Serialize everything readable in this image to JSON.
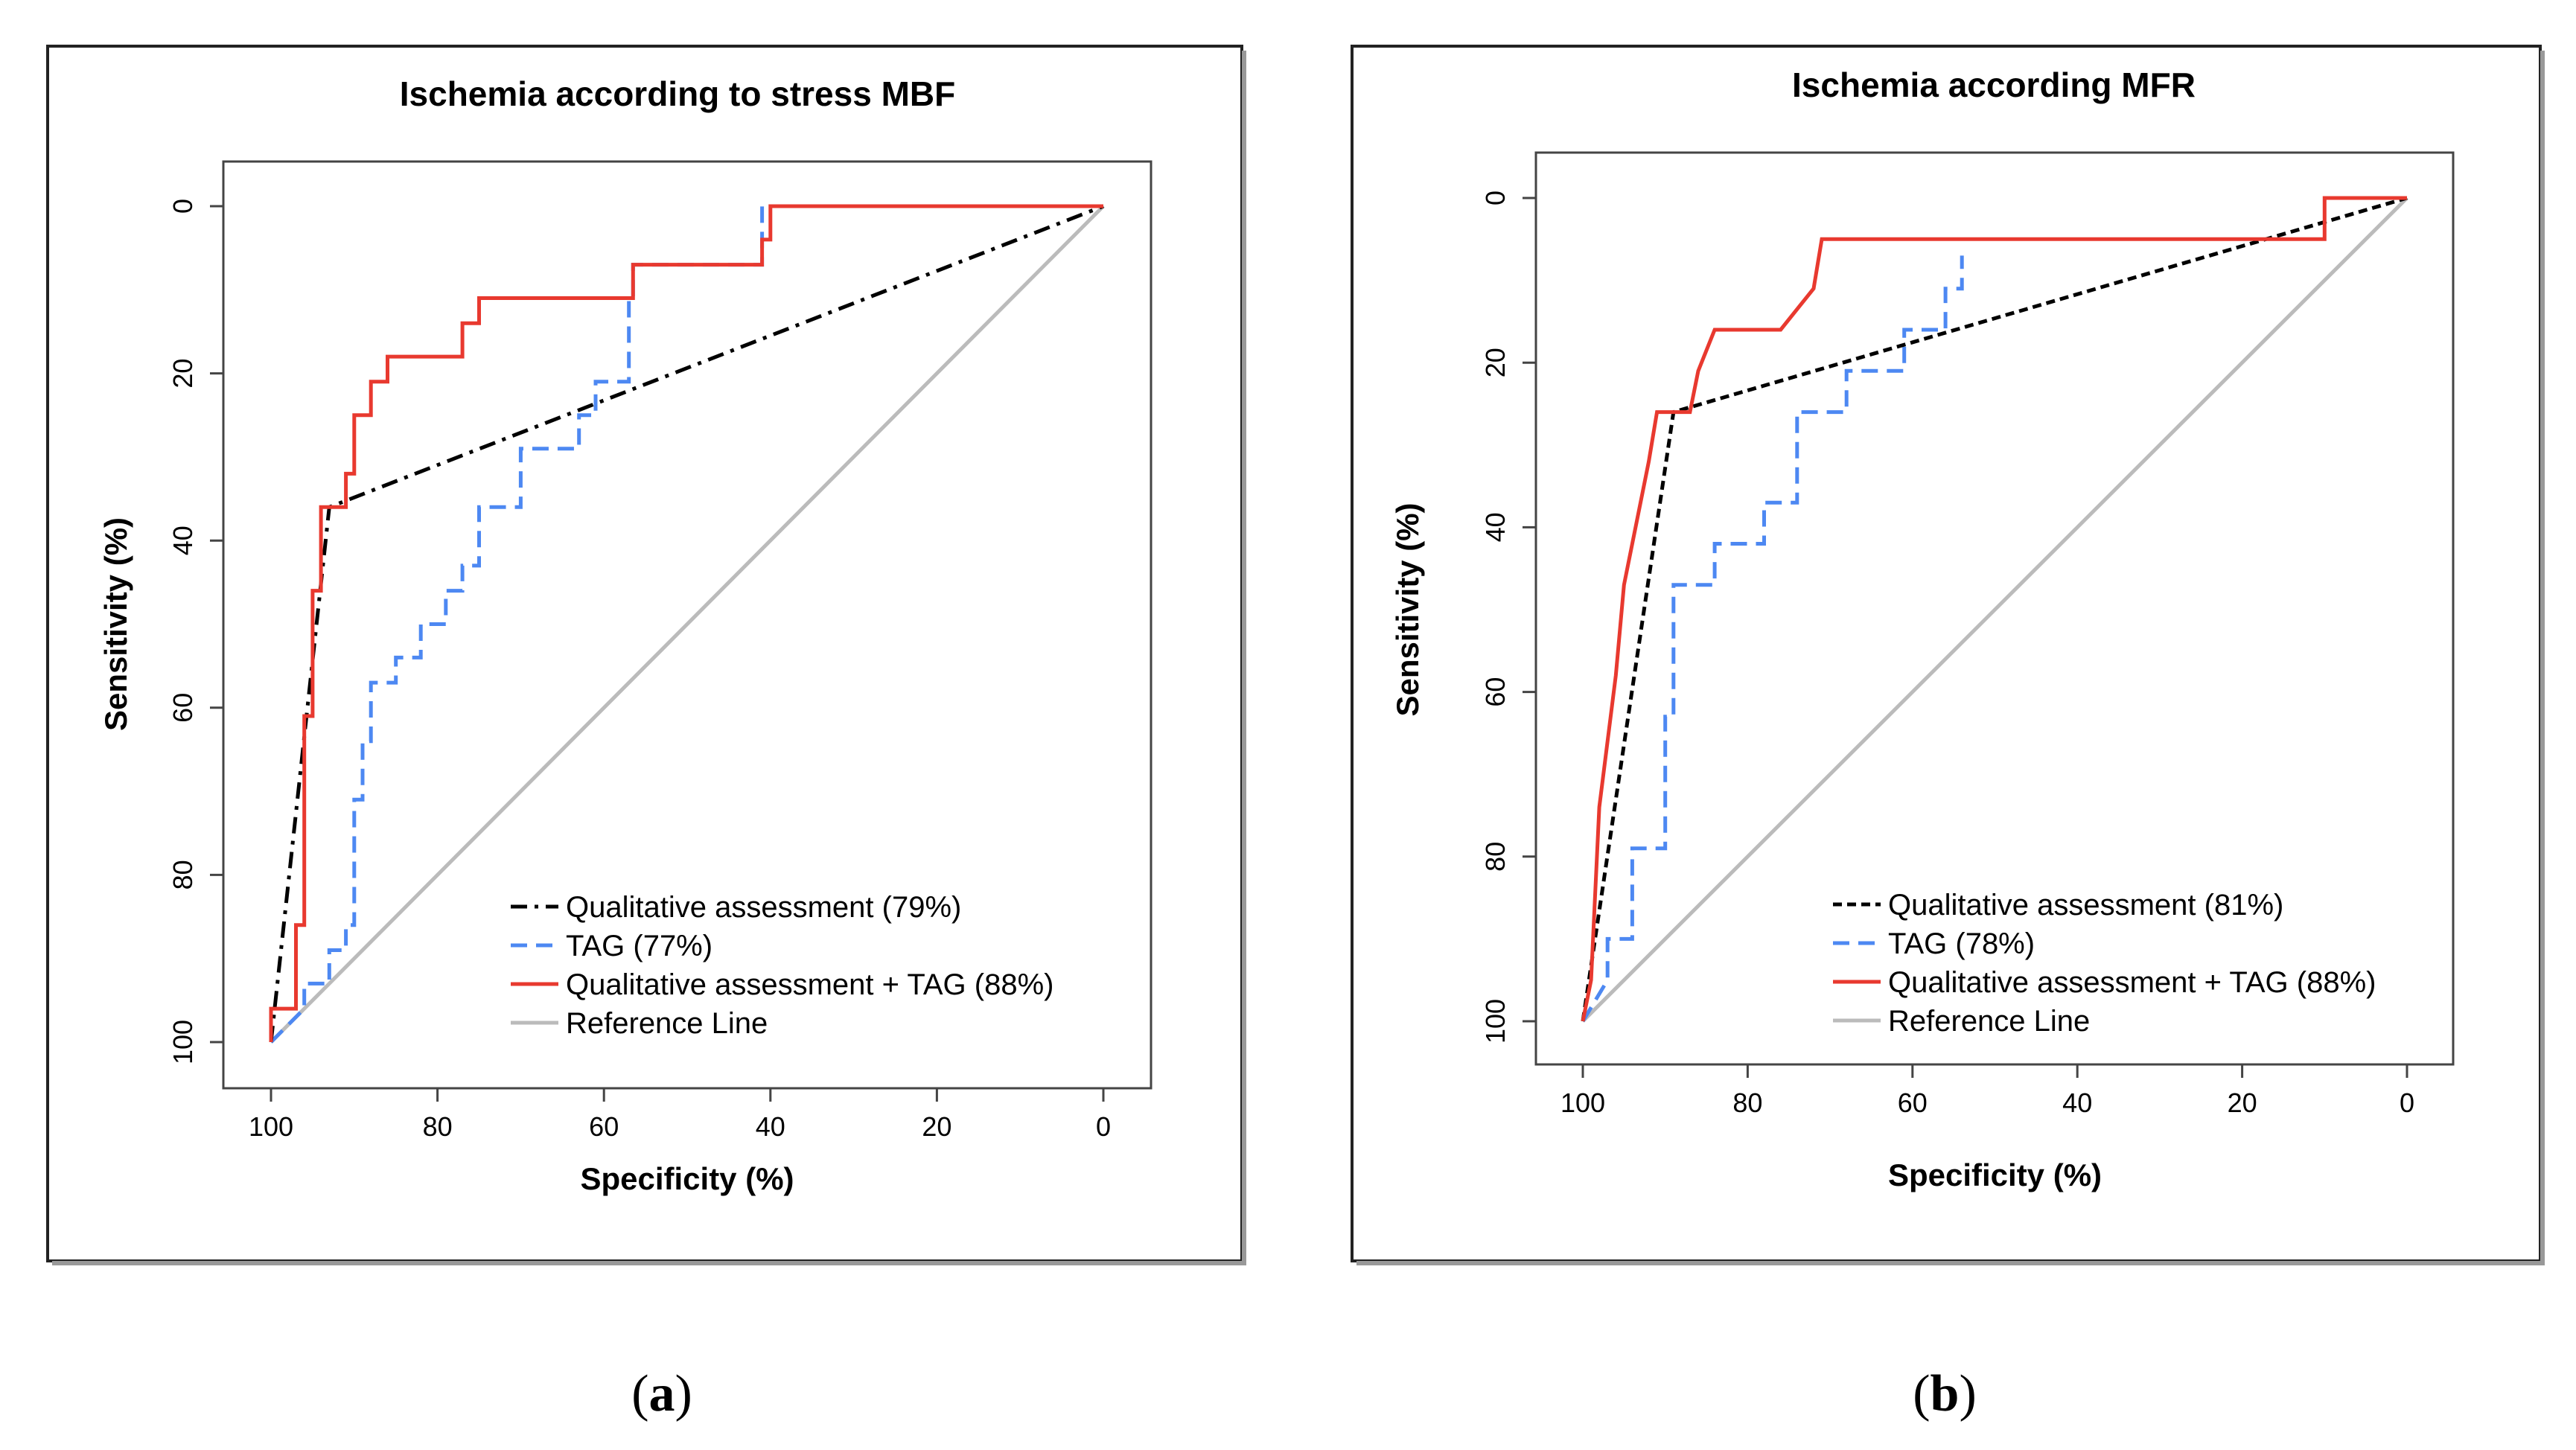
{
  "captions": {
    "a_letter": "a",
    "b_letter": "b"
  },
  "chart_data": [
    {
      "type": "line",
      "title": "Ischemia according to stress MBF",
      "xlabel": "Specificity (%)",
      "ylabel": "Sensitivity (%)",
      "xlim": [
        100,
        0
      ],
      "ylim": [
        0,
        100
      ],
      "xticks": [
        100,
        80,
        60,
        40,
        20,
        0
      ],
      "yticks": [
        0,
        20,
        40,
        60,
        80,
        100
      ],
      "legend_position": "bottom-right",
      "series": [
        {
          "name": "Qualitative assessment (79%)",
          "color": "#000000",
          "style": "dashdot",
          "x": [
            100,
            93,
            0
          ],
          "y": [
            100,
            36,
            0
          ]
        },
        {
          "name": "TAG (77%)",
          "color": "#4d88f2",
          "style": "dashed",
          "x": [
            100,
            96,
            96,
            93,
            93,
            91,
            91,
            90,
            90,
            89,
            89,
            88,
            88,
            85,
            85,
            82,
            82,
            79,
            79,
            77,
            77,
            75,
            75,
            70,
            70,
            63,
            63,
            61,
            61,
            57,
            57,
            56.5,
            56.5,
            41,
            41,
            0
          ],
          "y": [
            100,
            96,
            93,
            93,
            89,
            89,
            86,
            86,
            71,
            71,
            64,
            64,
            57,
            57,
            54,
            54,
            50,
            50,
            46,
            46,
            43,
            43,
            36,
            36,
            29,
            29,
            25,
            25,
            21,
            21,
            11,
            11,
            7,
            7,
            0,
            0
          ]
        },
        {
          "name": "Qualitative assessment + TAG (88%)",
          "color": "#e8392f",
          "style": "solid",
          "x": [
            100,
            100,
            97,
            97,
            96,
            96,
            95,
            95,
            94,
            94,
            91,
            91,
            90,
            90,
            88,
            88,
            86,
            86,
            85,
            85,
            77,
            77,
            75,
            75,
            56.5,
            56.5,
            41,
            41,
            40,
            40,
            0
          ],
          "y": [
            100,
            96,
            96,
            86,
            86,
            61,
            61,
            46,
            46,
            36,
            36,
            32,
            32,
            25,
            25,
            21,
            21,
            18,
            18,
            18,
            18,
            14,
            14,
            11,
            11,
            7,
            7,
            4,
            4,
            0,
            0
          ]
        },
        {
          "name": "Reference Line",
          "color": "#bbbbbb",
          "style": "solid",
          "x": [
            100,
            0
          ],
          "y": [
            100,
            0
          ]
        }
      ]
    },
    {
      "type": "line",
      "title": "Ischemia according MFR",
      "xlabel": "Specificity (%)",
      "ylabel": "Sensitivity (%)",
      "xlim": [
        100,
        0
      ],
      "ylim": [
        0,
        100
      ],
      "xticks": [
        100,
        80,
        60,
        40,
        20,
        0
      ],
      "yticks": [
        0,
        20,
        40,
        60,
        80,
        100
      ],
      "legend_position": "bottom-right",
      "series": [
        {
          "name": "Qualitative assessment (81%)",
          "color": "#000000",
          "style": "dotted",
          "x": [
            100,
            89,
            0
          ],
          "y": [
            100,
            26,
            0
          ]
        },
        {
          "name": "TAG (78%)",
          "color": "#4d88f2",
          "style": "dashed",
          "x": [
            100,
            97,
            97,
            94,
            94,
            90,
            90,
            89,
            89,
            84,
            84,
            78,
            78,
            74,
            74,
            68,
            68,
            61,
            61,
            56,
            56,
            54,
            54
          ],
          "y": [
            100,
            95,
            90,
            90,
            79,
            79,
            63,
            63,
            47,
            47,
            42,
            42,
            37,
            37,
            26,
            26,
            21,
            21,
            16,
            16,
            11,
            11,
            7
          ]
        },
        {
          "name": "Qualitative assessment + TAG (88%)",
          "color": "#e8392f",
          "style": "solid",
          "x": [
            100,
            99,
            99,
            98,
            98,
            96,
            96,
            95,
            95,
            94,
            94,
            93,
            93,
            92,
            92,
            91,
            91,
            87,
            87,
            86,
            86,
            84,
            84,
            76,
            76,
            72,
            72,
            71,
            71,
            10,
            10,
            0
          ],
          "y": [
            100,
            95,
            95,
            74,
            74,
            58,
            58,
            47,
            47,
            42,
            42,
            37,
            37,
            32,
            32,
            26,
            26,
            26,
            26,
            21,
            21,
            16,
            16,
            16,
            16,
            11,
            11,
            5,
            5,
            5,
            0,
            0
          ]
        },
        {
          "name": "Reference Line",
          "color": "#bbbbbb",
          "style": "solid",
          "x": [
            100,
            0
          ],
          "y": [
            100,
            0
          ]
        }
      ]
    }
  ]
}
